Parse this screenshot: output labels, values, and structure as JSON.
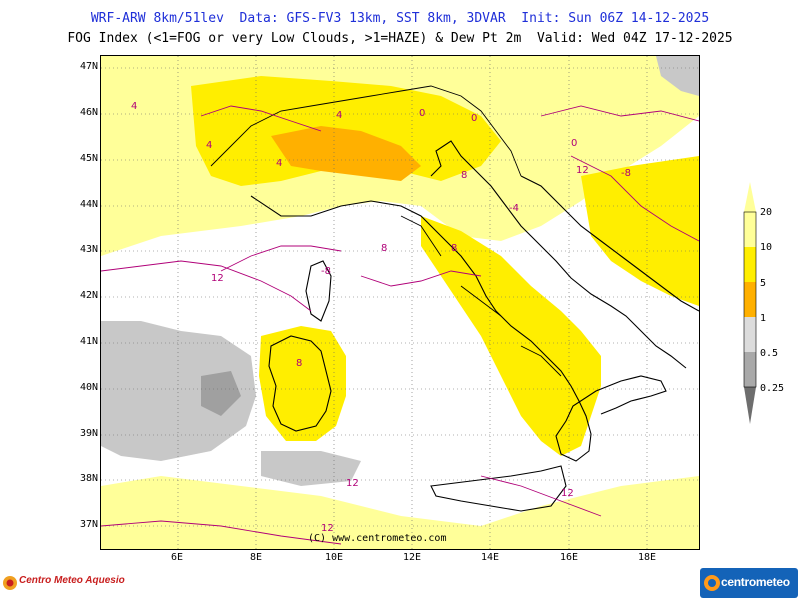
{
  "header": {
    "line1": "WRF-ARW 8km/51lev  Data: GFS-FV3 13km, SST 8km, 3DVAR  Init: Sun 06Z 14-12-2025",
    "line2": "FOG Index (<1=FOG or very Low Clouds, >1=HAZE) & Dew Pt 2m  Valid: Wed 04Z 17-12-2025"
  },
  "axes": {
    "lat_labels": [
      "47N",
      "46N",
      "45N",
      "44N",
      "43N",
      "42N",
      "41N",
      "40N",
      "39N",
      "38N",
      "37N"
    ],
    "lon_labels": [
      "6E",
      "8E",
      "10E",
      "12E",
      "14E",
      "16E",
      "18E"
    ]
  },
  "legend": {
    "labels": [
      "20",
      "10",
      "5",
      "1",
      "0.5",
      "0.25"
    ],
    "colors": {
      "c20": "#ffff99",
      "c10": "#ffee00",
      "c5": "#ffb000",
      "c1": "#dcdcdc",
      "c05": "#a9a9a9",
      "c025": "#6e6e6e"
    }
  },
  "credit": "(C) www.centrometeo.com",
  "map_colors": {
    "haze_light": "#ffff99",
    "haze_yellow": "#ffee00",
    "haze_orange": "#ffb000",
    "fog_light": "#c8c8c8",
    "fog_mid": "#a0a0a0",
    "fog_dark": "#6e6e6e",
    "contour": "#b00078",
    "coast": "#000000",
    "border": "#000000",
    "river": "#1a1ad0"
  },
  "contour_labels": [
    "4",
    "4",
    "0",
    "4",
    "0",
    "4",
    "-4",
    "8",
    "12",
    "-8",
    "-8",
    "12",
    "8",
    "8",
    "8",
    "12",
    "12",
    "0",
    "12"
  ],
  "logos": {
    "left": "Centro Meteo Aquesio",
    "right": "centrometeo"
  }
}
